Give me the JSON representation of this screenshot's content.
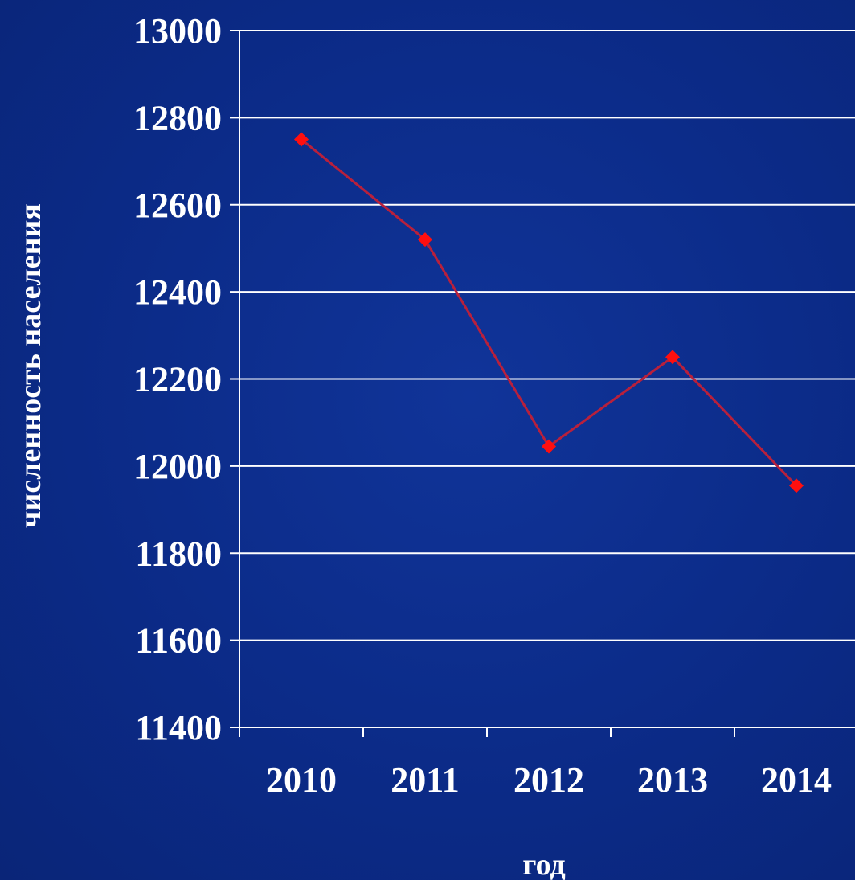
{
  "chart_data": {
    "type": "line",
    "categories": [
      "2010",
      "2011",
      "2012",
      "2013",
      "2014"
    ],
    "series": [
      {
        "values": [
          12750,
          12520,
          12045,
          12250,
          11955
        ]
      }
    ],
    "xlabel": "год",
    "ylabel": "численность населения",
    "ylim": [
      11400,
      13000
    ],
    "yticks": [
      "13000",
      "12800",
      "12600",
      "12400",
      "12200",
      "12000",
      "11800",
      "11600",
      "11400"
    ],
    "grid": true,
    "legend": "none",
    "colors": {
      "background": "#0c2a85",
      "line": "#b8203c",
      "marker": "#ff0f0f",
      "grid": "#ffffff",
      "text": "#ffffff"
    }
  }
}
